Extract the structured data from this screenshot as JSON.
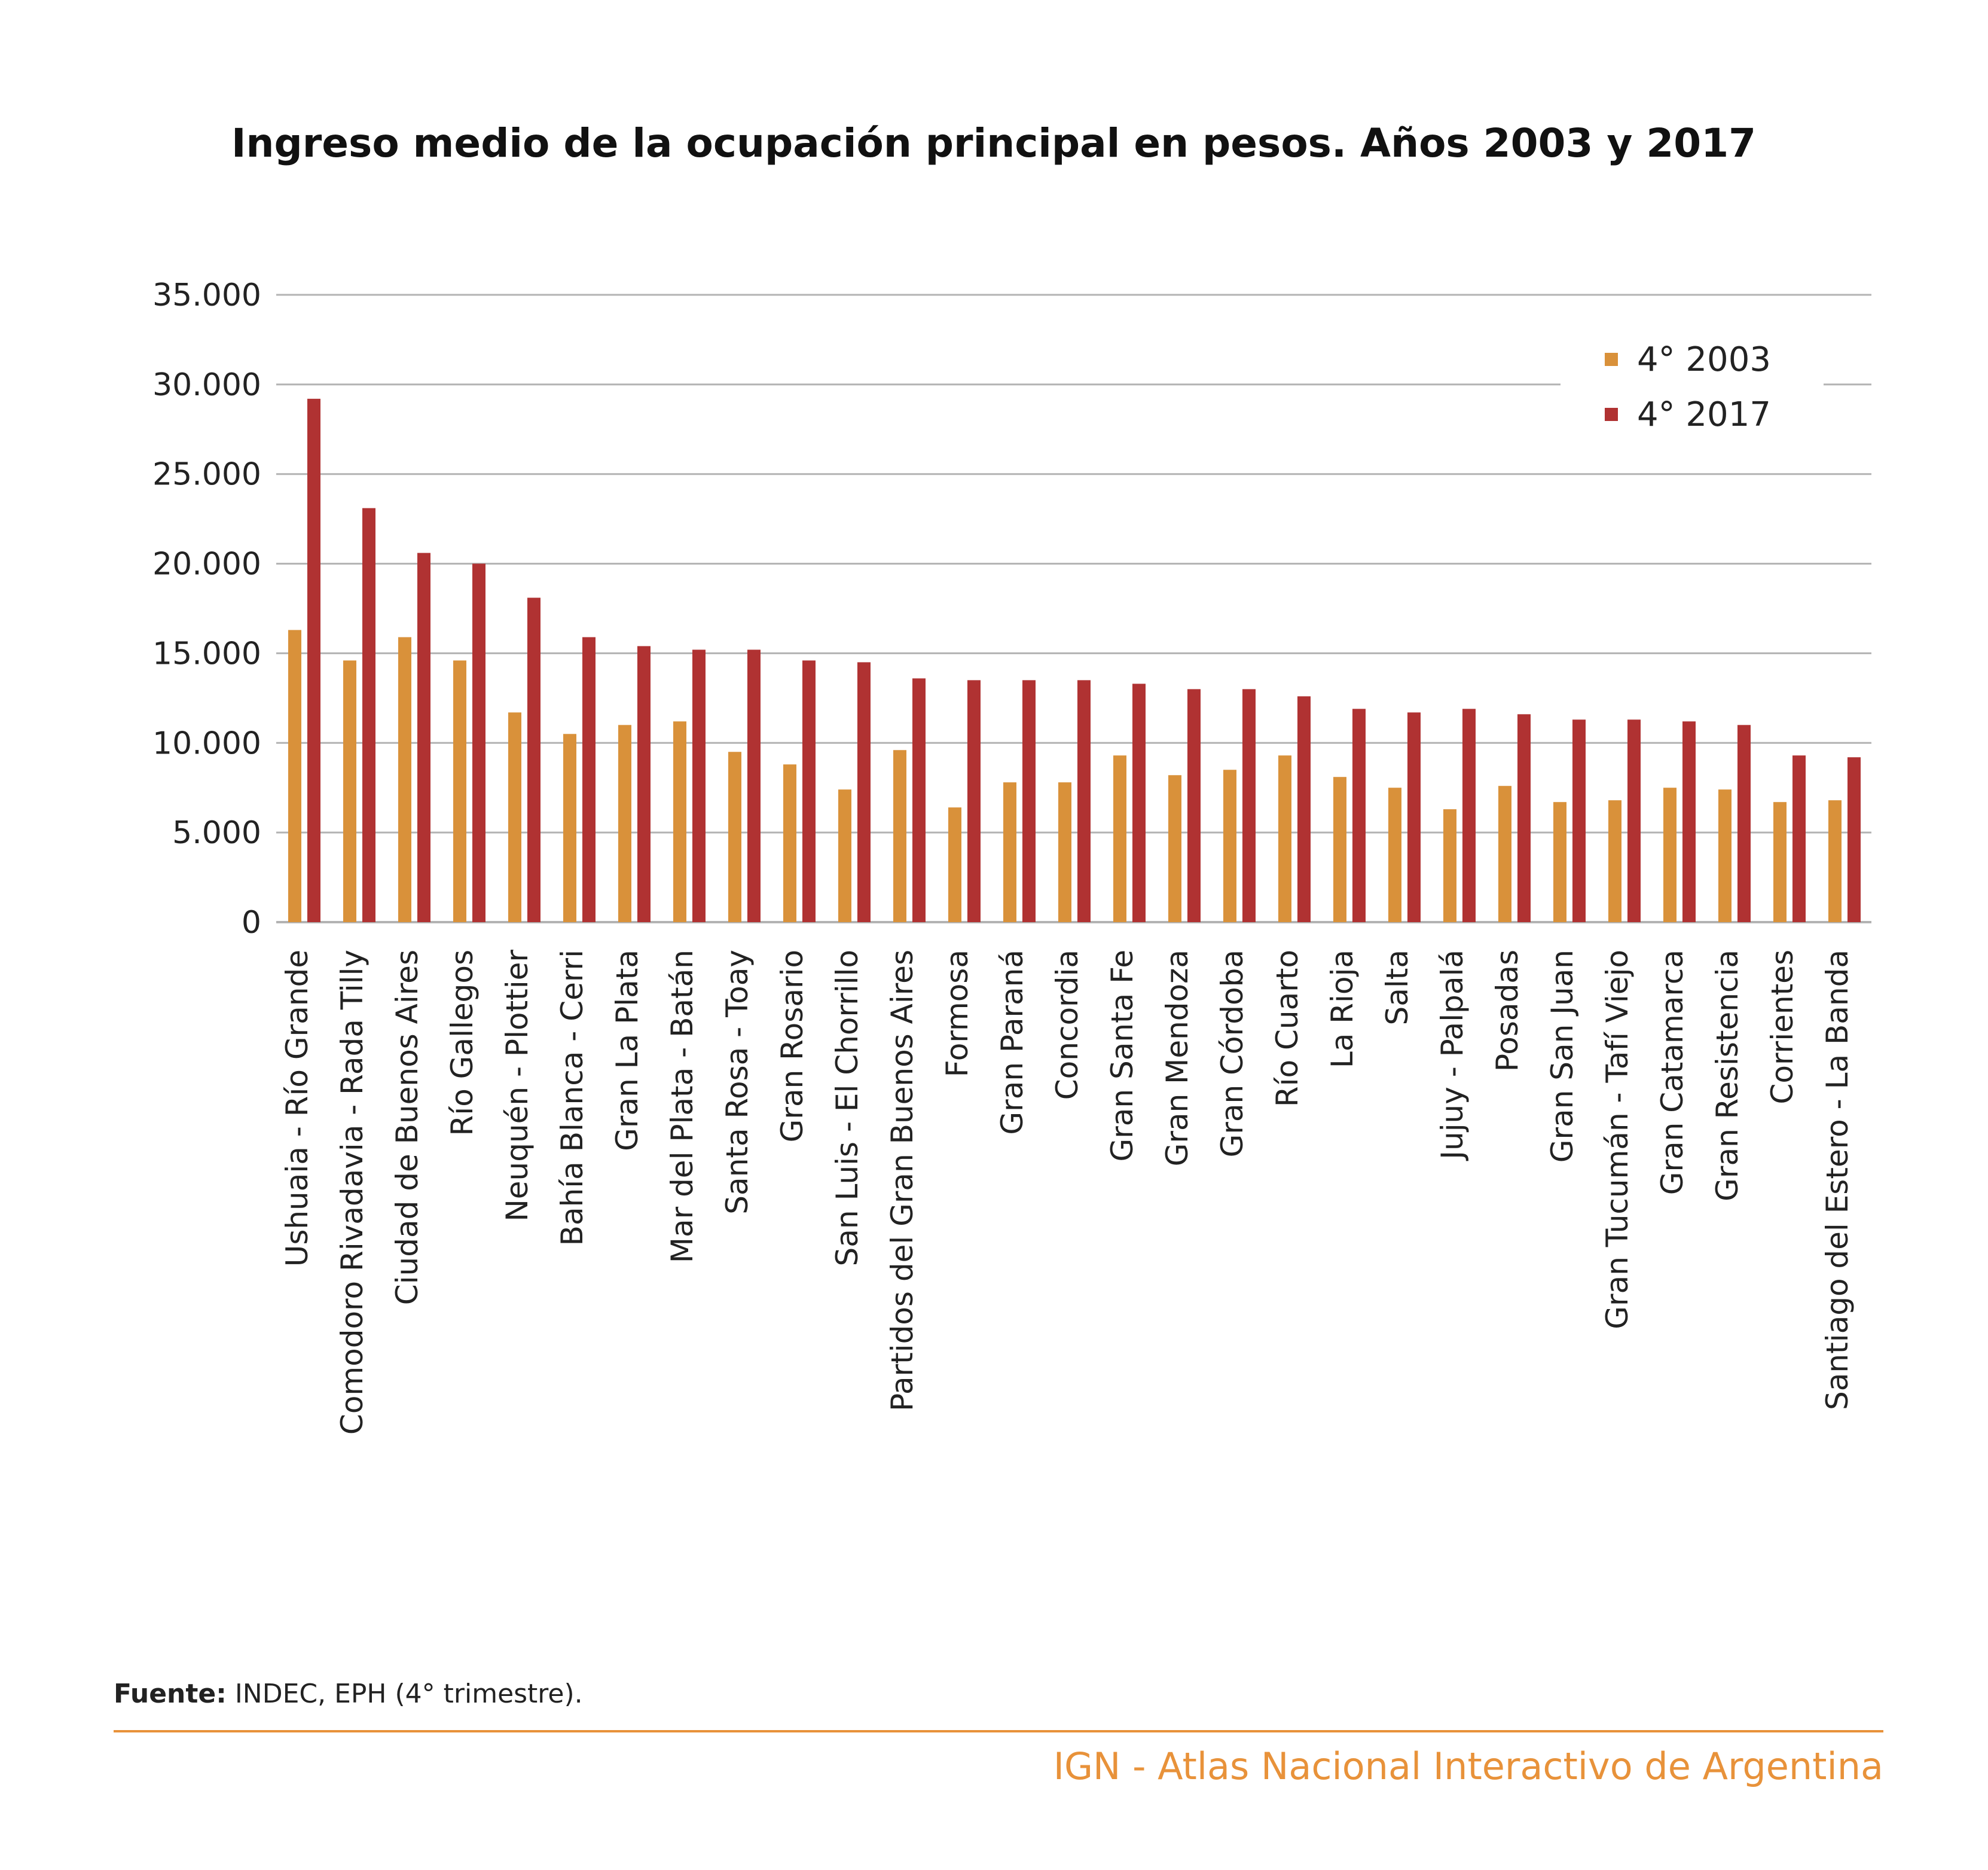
{
  "chart_data": {
    "type": "bar",
    "title": "Ingreso medio de la ocupación principal en pesos. Años 2003 y 2017",
    "xlabel": "",
    "ylabel": "",
    "ylim": [
      0,
      35000
    ],
    "yticks": [
      0,
      5000,
      10000,
      15000,
      20000,
      25000,
      30000,
      35000
    ],
    "ytick_labels": [
      "0",
      "5.000",
      "10.000",
      "15.000",
      "20.000",
      "25.000",
      "30.000",
      "35.000"
    ],
    "grid": true,
    "legend_position": "top-right",
    "categories": [
      "Ushuaia - Río Grande",
      "Comodoro Rivadavia - Rada Tilly",
      "Ciudad de Buenos Aires",
      "Río Gallegos",
      "Neuquén - Plottier",
      "Bahía Blanca - Cerri",
      "Gran La Plata",
      "Mar del Plata - Batán",
      "Santa Rosa - Toay",
      "Gran Rosario",
      "San Luis - El Chorrillo",
      "Partidos del Gran Buenos Aires",
      "Formosa",
      "Gran Paraná",
      "Concordia",
      "Gran Santa Fe",
      "Gran Mendoza",
      "Gran Córdoba",
      "Río Cuarto",
      "La Rioja",
      "Salta",
      "Jujuy - Palpalá",
      "Posadas",
      "Gran San Juan",
      "Gran Tucumán - Tafí Viejo",
      "Gran Catamarca",
      "Gran Resistencia",
      "Corrientes",
      "Santiago del Estero - La Banda"
    ],
    "series": [
      {
        "name": "4° 2003",
        "color": "#D9913A",
        "values": [
          16300,
          14600,
          15900,
          14600,
          11700,
          10500,
          11000,
          11200,
          9500,
          8800,
          7400,
          9600,
          6400,
          7800,
          7800,
          9300,
          8200,
          8500,
          9300,
          8100,
          7500,
          6300,
          7600,
          6700,
          6800,
          7500,
          7400,
          6700,
          6800
        ]
      },
      {
        "name": "4° 2017",
        "color": "#B03232",
        "values": [
          29200,
          23100,
          20600,
          20000,
          18100,
          15900,
          15400,
          15200,
          15200,
          14600,
          14500,
          13600,
          13500,
          13500,
          13500,
          13300,
          13000,
          13000,
          12600,
          11900,
          11700,
          11900,
          11600,
          11300,
          11300,
          11200,
          11000,
          9300,
          9200
        ]
      }
    ]
  },
  "source": {
    "label": "Fuente:",
    "text": " INDEC, EPH (4° trimestre)."
  },
  "footer": {
    "text": "IGN - Atlas Nacional Interactivo de Argentina",
    "line_color": "#E8923A"
  },
  "grid_color": "#B3B3B3"
}
